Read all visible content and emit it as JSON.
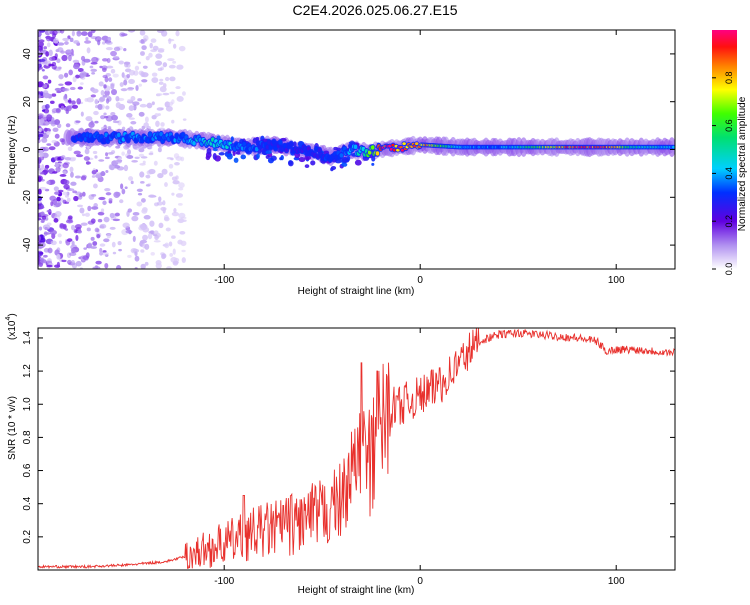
{
  "title": "C2E4.2026.025.06.27.E15",
  "colors": {
    "snr_line": "#e8302c",
    "axis": "#000000",
    "background": "#ffffff"
  },
  "chart_data": [
    {
      "type": "heatmap",
      "name": "spectrogram",
      "xlabel": "Height of straight line (km)",
      "ylabel": "Frequency (Hz)",
      "xlim": [
        -195,
        130
      ],
      "ylim": [
        -50,
        50
      ],
      "x_ticks": [
        -100,
        0,
        100
      ],
      "x_tick_labels": [
        "-100",
        "0",
        "100"
      ],
      "y_ticks": [
        -40,
        -20,
        0,
        20,
        40
      ],
      "y_tick_labels": [
        "-40",
        "-20",
        "0",
        "20",
        "40"
      ],
      "colorbar": {
        "label": "Normalized spectral amplitude",
        "range": [
          0,
          1
        ],
        "ticks": [
          0.0,
          0.2,
          0.4,
          0.6,
          0.8
        ],
        "tick_labels": [
          "0.0",
          "0.2",
          "0.4",
          "0.6",
          "0.8"
        ]
      },
      "ridge": {
        "x": [
          -175,
          -150,
          -125,
          -105,
          -90,
          -75,
          -60,
          -45,
          -35,
          -28,
          -20,
          -10,
          0,
          20,
          40,
          60,
          80,
          95,
          110,
          130
        ],
        "freq": [
          5,
          5,
          5,
          3,
          1,
          2,
          0,
          -3,
          0,
          -1,
          0,
          1,
          2,
          1,
          1,
          1,
          1,
          1,
          1,
          1
        ],
        "amplitude": [
          0.3,
          0.35,
          0.35,
          0.45,
          0.35,
          0.3,
          0.25,
          0.3,
          0.4,
          0.5,
          0.9,
          0.9,
          0.85,
          0.4,
          0.35,
          0.6,
          0.95,
          0.9,
          0.5,
          0.4
        ]
      }
    },
    {
      "type": "line",
      "name": "snr",
      "xlabel": "Height of straight line (km)",
      "ylabel": "SNR (10 * v/v)",
      "y_scale_label": "(x10",
      "y_scale_exponent": "4",
      "y_scale_close": ")",
      "xlim": [
        -195,
        130
      ],
      "ylim": [
        0,
        1.46
      ],
      "x_ticks": [
        -100,
        0,
        100
      ],
      "x_tick_labels": [
        "-100",
        "0",
        "100"
      ],
      "y_ticks": [
        0.2,
        0.4,
        0.6,
        0.8,
        1.0,
        1.2,
        1.4
      ],
      "y_tick_labels": [
        "0.2",
        "0.4",
        "0.6",
        "0.8",
        "1.0",
        "1.2",
        "1.4"
      ],
      "series": [
        {
          "name": "SNR",
          "x": [
            -195,
            -170,
            -150,
            -130,
            -120,
            -110,
            -100,
            -90,
            -80,
            -70,
            -60,
            -50,
            -45,
            -40,
            -35,
            -30,
            -25,
            -20,
            -15,
            -10,
            -5,
            0,
            5,
            10,
            15,
            20,
            25,
            30,
            35,
            40,
            50,
            60,
            70,
            80,
            90,
            95,
            100,
            110,
            120,
            130
          ],
          "values": [
            0.02,
            0.02,
            0.03,
            0.05,
            0.08,
            0.12,
            0.16,
            0.2,
            0.24,
            0.26,
            0.3,
            0.33,
            0.38,
            0.42,
            0.6,
            0.72,
            0.6,
            0.88,
            0.98,
            1.0,
            1.02,
            1.05,
            1.08,
            1.12,
            1.18,
            1.25,
            1.32,
            1.38,
            1.4,
            1.42,
            1.43,
            1.42,
            1.41,
            1.4,
            1.38,
            1.32,
            1.33,
            1.33,
            1.32,
            1.31
          ],
          "spikes": [
            {
              "x": -90,
              "value": 0.45
            },
            {
              "x": -70,
              "value": 0.39
            },
            {
              "x": -45,
              "value": 0.5
            },
            {
              "x": -30,
              "value": 1.25
            },
            {
              "x": -22,
              "value": 1.2
            },
            {
              "x": -12,
              "value": 1.05
            },
            {
              "x": 10,
              "value": 1.22
            }
          ]
        }
      ]
    }
  ]
}
